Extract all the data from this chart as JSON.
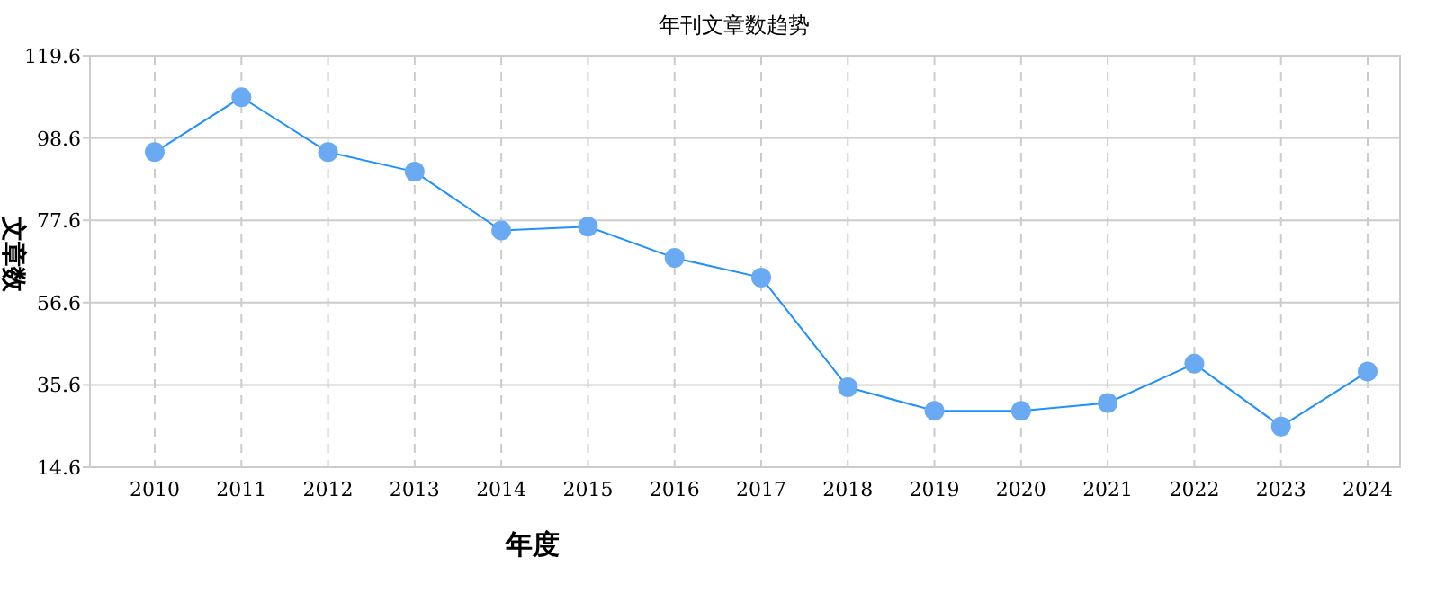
{
  "chart_data": {
    "type": "line",
    "title": "年刊文章数趋势",
    "xlabel": "年度",
    "ylabel": "文章数",
    "categories": [
      "2010",
      "2011",
      "2012",
      "2013",
      "2014",
      "2015",
      "2016",
      "2017",
      "2018",
      "2019",
      "2020",
      "2021",
      "2022",
      "2023",
      "2024"
    ],
    "values": [
      95,
      109,
      95,
      90,
      75,
      76,
      68,
      63,
      35,
      29,
      29,
      31,
      41,
      25,
      39
    ],
    "color": "#1e90ff",
    "marker": "circle",
    "grid": true,
    "ylim": [
      14.6,
      119.6
    ],
    "yticks": [
      14.6,
      35.6,
      56.6,
      77.6,
      98.6,
      119.6
    ]
  }
}
